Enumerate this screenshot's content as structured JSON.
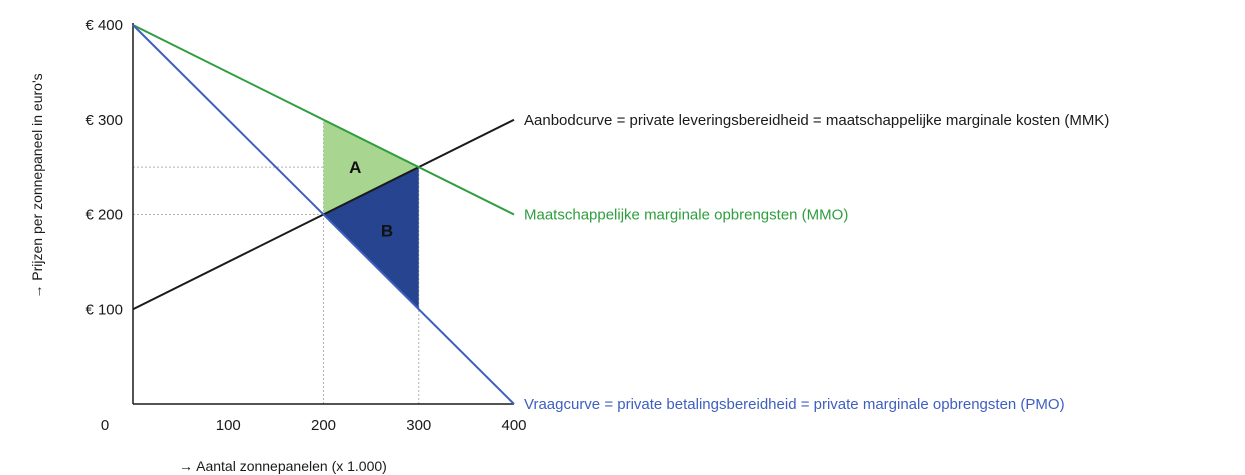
{
  "chart_data": {
    "type": "line",
    "xlabel": "→ Aantal zonnepanelen (x 1.000)",
    "ylabel": "→ Prijzen per zonnepaneel in euro's",
    "xlim": [
      0,
      400
    ],
    "ylim": [
      0,
      400
    ],
    "x_ticks": [
      {
        "value": 0,
        "label": "0"
      },
      {
        "value": 100,
        "label": "100"
      },
      {
        "value": 200,
        "label": "200"
      },
      {
        "value": 300,
        "label": "300"
      },
      {
        "value": 400,
        "label": "400"
      }
    ],
    "y_ticks": [
      {
        "value": 100,
        "label": "€ 100"
      },
      {
        "value": 200,
        "label": "€ 200"
      },
      {
        "value": 300,
        "label": "€ 300"
      },
      {
        "value": 400,
        "label": "€ 400"
      }
    ],
    "series": [
      {
        "name": "Aanbodcurve = private leveringsbereidheid = maatschappelijke marginale kosten (MMK)",
        "color": "#1a1a1a",
        "x": [
          0,
          400
        ],
        "y": [
          100,
          300
        ]
      },
      {
        "name": "Maatschappelijke marginale opbrengsten (MMO)",
        "color": "#2e9e3e",
        "x": [
          0,
          400
        ],
        "y": [
          400,
          200
        ]
      },
      {
        "name": "Vraagcurve = private betalingsbereidheid = private marginale opbrengsten (PMO)",
        "color": "#3f5fbf",
        "x": [
          0,
          400
        ],
        "y": [
          400,
          0
        ]
      }
    ],
    "areas": [
      {
        "label": "A",
        "color": "#a8d58f",
        "points": [
          [
            200,
            300
          ],
          [
            300,
            250
          ],
          [
            200,
            200
          ]
        ]
      },
      {
        "label": "B",
        "color": "#26448f",
        "points": [
          [
            200,
            200
          ],
          [
            300,
            250
          ],
          [
            300,
            100
          ]
        ]
      }
    ],
    "guides": [
      {
        "x": [
          0,
          300
        ],
        "y": [
          250,
          250
        ]
      },
      {
        "x": [
          0,
          200
        ],
        "y": [
          200,
          200
        ]
      },
      {
        "x": [
          200,
          200
        ],
        "y": [
          0,
          300
        ]
      },
      {
        "x": [
          300,
          300
        ],
        "y": [
          0,
          250
        ]
      }
    ]
  }
}
